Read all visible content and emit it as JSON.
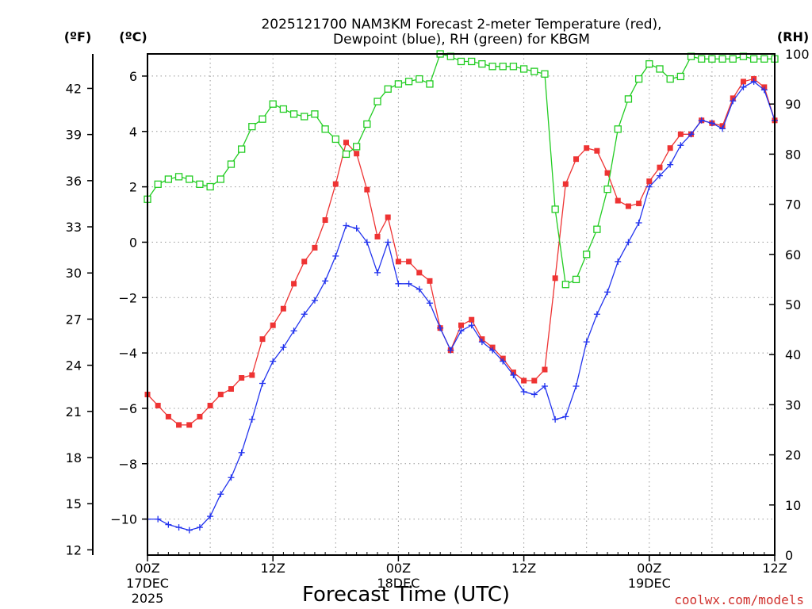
{
  "chart_data": {
    "type": "line",
    "title_line1": "2025121700 NAM3KM Forecast 2-meter Temperature (red),",
    "title_line2": "Dewpoint (blue), RH (green) for KBGM",
    "xlabel": "Forecast Time (UTC)",
    "credit": "coolwx.com/models",
    "unit_f": "(ºF)",
    "unit_c": "(ºC)",
    "unit_rh": "(RH)",
    "hours_range": [
      0,
      60
    ],
    "c_range": [
      -11.3,
      6.8
    ],
    "rh_range": [
      0,
      100
    ],
    "x_ticks": [
      {
        "hour": 0,
        "label": "00Z",
        "sub1": "17DEC",
        "sub2": "2025"
      },
      {
        "hour": 12,
        "label": "12Z",
        "sub1": "",
        "sub2": ""
      },
      {
        "hour": 24,
        "label": "00Z",
        "sub1": "18DEC",
        "sub2": ""
      },
      {
        "hour": 36,
        "label": "12Z",
        "sub1": "",
        "sub2": ""
      },
      {
        "hour": 48,
        "label": "00Z",
        "sub1": "19DEC",
        "sub2": ""
      },
      {
        "hour": 60,
        "label": "12Z",
        "sub1": "",
        "sub2": ""
      }
    ],
    "c_ticks": [
      {
        "value": 6,
        "label": "6"
      },
      {
        "value": 4,
        "label": "4"
      },
      {
        "value": 2,
        "label": "2"
      },
      {
        "value": 0,
        "label": "0"
      },
      {
        "value": -2,
        "label": "−2"
      },
      {
        "value": -4,
        "label": "−4"
      },
      {
        "value": -6,
        "label": "−6"
      },
      {
        "value": -8,
        "label": "−8"
      },
      {
        "value": -10,
        "label": "−10"
      }
    ],
    "f_ticks": [
      {
        "value": 42,
        "label": "42"
      },
      {
        "value": 39,
        "label": "39"
      },
      {
        "value": 36,
        "label": "36"
      },
      {
        "value": 33,
        "label": "33"
      },
      {
        "value": 30,
        "label": "30"
      },
      {
        "value": 27,
        "label": "27"
      },
      {
        "value": 24,
        "label": "24"
      },
      {
        "value": 21,
        "label": "21"
      },
      {
        "value": 18,
        "label": "18"
      },
      {
        "value": 15,
        "label": "15"
      },
      {
        "value": 12,
        "label": "12"
      }
    ],
    "rh_ticks": [
      {
        "value": 100,
        "label": "100"
      },
      {
        "value": 90,
        "label": "90"
      },
      {
        "value": 80,
        "label": "80"
      },
      {
        "value": 70,
        "label": "70"
      },
      {
        "value": 60,
        "label": "60"
      },
      {
        "value": 50,
        "label": "50"
      },
      {
        "value": 40,
        "label": "40"
      },
      {
        "value": 30,
        "label": "30"
      },
      {
        "value": 20,
        "label": "20"
      },
      {
        "value": 10,
        "label": "10"
      },
      {
        "value": 0,
        "label": "0"
      }
    ],
    "hours": [
      0,
      1,
      2,
      3,
      4,
      5,
      6,
      7,
      8,
      9,
      10,
      11,
      12,
      13,
      14,
      15,
      16,
      17,
      18,
      19,
      20,
      21,
      22,
      23,
      24,
      25,
      26,
      27,
      28,
      29,
      30,
      31,
      32,
      33,
      34,
      35,
      36,
      37,
      38,
      39,
      40,
      41,
      42,
      43,
      44,
      45,
      46,
      47,
      48,
      49,
      50,
      51,
      52,
      53,
      54,
      55,
      56,
      57,
      58,
      59,
      60
    ],
    "series": [
      {
        "name": "Temperature",
        "axis": "c",
        "color": "#ee3333",
        "marker": "filled-square",
        "values": [
          -5.5,
          -5.9,
          -6.3,
          -6.6,
          -6.6,
          -6.3,
          -5.9,
          -5.5,
          -5.3,
          -4.9,
          -4.8,
          -3.5,
          -3.0,
          -2.4,
          -1.5,
          -0.7,
          -0.2,
          0.8,
          2.1,
          3.6,
          3.2,
          1.9,
          0.2,
          0.9,
          -0.7,
          -0.7,
          -1.1,
          -1.4,
          -3.1,
          -3.9,
          -3.0,
          -2.8,
          -3.5,
          -3.8,
          -4.2,
          -4.7,
          -5.0,
          -5.0,
          -4.6,
          -1.3,
          2.1,
          3.0,
          3.4,
          3.3,
          2.5,
          1.5,
          1.3,
          1.4,
          2.2,
          2.7,
          3.4,
          3.9,
          3.9,
          4.4,
          4.3,
          4.2,
          5.2,
          5.8,
          5.9,
          5.6,
          4.4
        ]
      },
      {
        "name": "Dewpoint",
        "axis": "c",
        "color": "#2233ee",
        "marker": "plus",
        "values": [
          -10.0,
          -10.0,
          -10.2,
          -10.3,
          -10.4,
          -10.3,
          -9.9,
          -9.1,
          -8.5,
          -7.6,
          -6.4,
          -5.1,
          -4.3,
          -3.8,
          -3.2,
          -2.6,
          -2.1,
          -1.4,
          -0.5,
          0.6,
          0.5,
          0.0,
          -1.1,
          0.0,
          -1.5,
          -1.5,
          -1.7,
          -2.2,
          -3.1,
          -3.9,
          -3.2,
          -3.0,
          -3.6,
          -3.9,
          -4.3,
          -4.8,
          -5.4,
          -5.5,
          -5.2,
          -6.4,
          -6.3,
          -5.2,
          -3.6,
          -2.6,
          -1.8,
          -0.7,
          0.0,
          0.7,
          2.0,
          2.4,
          2.8,
          3.5,
          3.9,
          4.4,
          4.3,
          4.1,
          5.1,
          5.6,
          5.8,
          5.5,
          4.4
        ]
      },
      {
        "name": "RH",
        "axis": "rh",
        "color": "#22cc22",
        "marker": "open-square",
        "values": [
          71,
          74,
          75,
          75.5,
          75,
          74,
          73.5,
          75,
          78,
          81,
          85.5,
          87,
          90,
          89,
          88,
          87.5,
          88,
          85,
          83,
          80,
          81.5,
          86,
          90.5,
          93,
          94,
          94.5,
          95,
          94,
          100,
          99.5,
          98.5,
          98.5,
          98,
          97.5,
          97.5,
          97.5,
          97,
          96.5,
          96,
          69,
          54,
          55,
          60,
          65,
          73,
          85,
          91,
          95,
          98,
          97,
          95,
          95.5,
          99.5,
          99,
          99,
          99,
          99,
          99.5,
          99,
          99,
          99
        ]
      }
    ]
  }
}
